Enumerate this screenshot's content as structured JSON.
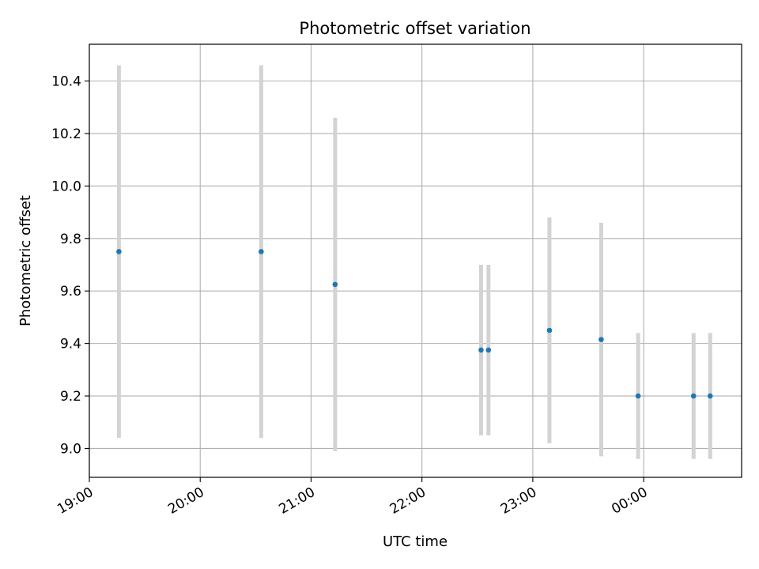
{
  "chart_data": {
    "type": "scatter",
    "title": "Photometric offset variation",
    "xlabel": "UTC time",
    "ylabel": "Photometric offset",
    "x_ticks": [
      "19:00",
      "20:00",
      "21:00",
      "22:00",
      "23:00",
      "00:00"
    ],
    "y_ticks": [
      9.0,
      9.2,
      9.4,
      9.6,
      9.8,
      10.0,
      10.2,
      10.4
    ],
    "xlim": [
      "19:00",
      "00:53"
    ],
    "ylim": [
      8.89,
      10.54
    ],
    "grid": true,
    "colors": {
      "marker": "#1f77b4",
      "error_bar": "#d3d3d3",
      "grid": "#b0b0b0"
    },
    "points": [
      {
        "time": "19:16",
        "y": 9.75,
        "y_low": 9.04,
        "y_high": 10.46
      },
      {
        "time": "20:33",
        "y": 9.75,
        "y_low": 9.04,
        "y_high": 10.46
      },
      {
        "time": "21:13",
        "y": 9.625,
        "y_low": 8.99,
        "y_high": 10.26
      },
      {
        "time": "22:32",
        "y": 9.375,
        "y_low": 9.05,
        "y_high": 9.7
      },
      {
        "time": "22:36",
        "y": 9.375,
        "y_low": 9.05,
        "y_high": 9.7
      },
      {
        "time": "23:09",
        "y": 9.45,
        "y_low": 9.02,
        "y_high": 9.88
      },
      {
        "time": "23:37",
        "y": 9.415,
        "y_low": 8.97,
        "y_high": 9.86
      },
      {
        "time": "23:57",
        "y": 9.2,
        "y_low": 8.96,
        "y_high": 9.44
      },
      {
        "time": "00:27",
        "y": 9.2,
        "y_low": 8.96,
        "y_high": 9.44
      },
      {
        "time": "00:36",
        "y": 9.2,
        "y_low": 8.96,
        "y_high": 9.44
      }
    ]
  }
}
